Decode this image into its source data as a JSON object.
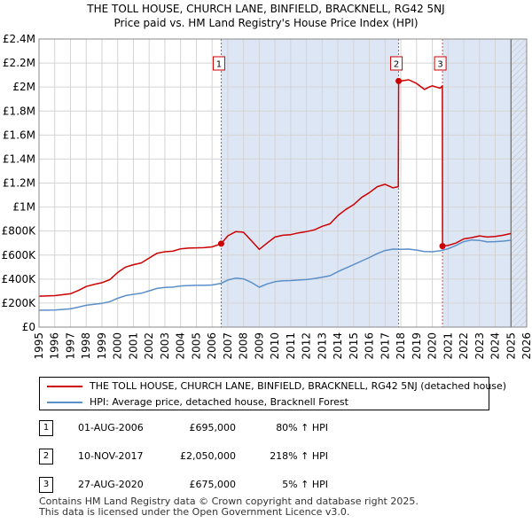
{
  "colors": {
    "property_line": "#cc0000",
    "hpi_line": "#5b8fc9",
    "shade": "#dde6f5",
    "grid": "#d4d4d4",
    "marker_border": "#cc0000"
  },
  "chart_data": {
    "type": "line",
    "title": "THE TOLL HOUSE, CHURCH LANE, BINFIELD, BRACKNELL, RG42 5NJ",
    "subtitle": "Price paid vs. HM Land Registry's House Price Index (HPI)",
    "xlabel": "",
    "ylabel": "",
    "xlim": [
      1995,
      2026
    ],
    "ylim": [
      0,
      2400000
    ],
    "x_ticks": [
      "1995",
      "1996",
      "1997",
      "1998",
      "1999",
      "2000",
      "2001",
      "2002",
      "2003",
      "2004",
      "2005",
      "2006",
      "2007",
      "2008",
      "2009",
      "2010",
      "2011",
      "2012",
      "2013",
      "2014",
      "2015",
      "2016",
      "2017",
      "2018",
      "2019",
      "2020",
      "2021",
      "2022",
      "2023",
      "2024",
      "2025",
      "2026"
    ],
    "y_ticks": [
      {
        "value": 0,
        "label": "£0"
      },
      {
        "value": 200000,
        "label": "£200K"
      },
      {
        "value": 400000,
        "label": "£400K"
      },
      {
        "value": 600000,
        "label": "£600K"
      },
      {
        "value": 800000,
        "label": "£800K"
      },
      {
        "value": 1000000,
        "label": "£1M"
      },
      {
        "value": 1200000,
        "label": "£1.2M"
      },
      {
        "value": 1400000,
        "label": "£1.4M"
      },
      {
        "value": 1600000,
        "label": "£1.6M"
      },
      {
        "value": 1800000,
        "label": "£1.8M"
      },
      {
        "value": 2000000,
        "label": "£2M"
      },
      {
        "value": 2200000,
        "label": "£2.2M"
      },
      {
        "value": 2400000,
        "label": "£2.4M"
      }
    ],
    "grid": true,
    "shaded_ranges": [
      {
        "from": 2006.58,
        "to": 2017.86
      },
      {
        "from": 2020.65,
        "to": 2026
      }
    ],
    "hatched_from": 2025.0,
    "series": [
      {
        "name": "THE TOLL HOUSE, CHURCH LANE, BINFIELD, BRACKNELL, RG42 5NJ (detached house)",
        "color": "#cc0000",
        "x": [
          1995.0,
          1996.0,
          1997.0,
          1997.5,
          1998.0,
          1998.5,
          1999.0,
          1999.5,
          2000.0,
          2000.5,
          2001.0,
          2001.5,
          2002.0,
          2002.5,
          2003.0,
          2003.5,
          2004.0,
          2004.5,
          2005.0,
          2005.5,
          2006.0,
          2006.58,
          2007.0,
          2007.5,
          2008.0,
          2008.5,
          2009.0,
          2009.5,
          2010.0,
          2010.5,
          2011.0,
          2011.5,
          2012.0,
          2012.5,
          2013.0,
          2013.5,
          2014.0,
          2014.5,
          2015.0,
          2015.5,
          2016.0,
          2016.5,
          2017.0,
          2017.5,
          2017.84,
          2017.86,
          2018.0,
          2018.5,
          2019.0,
          2019.5,
          2019.8,
          2020.0,
          2020.5,
          2020.64,
          2020.65,
          2021.0,
          2021.5,
          2022.0,
          2022.5,
          2023.0,
          2023.5,
          2024.0,
          2024.5,
          2025.0
        ],
        "values": [
          258000,
          262000,
          278000,
          305000,
          338000,
          355000,
          370000,
          395000,
          455000,
          500000,
          520000,
          535000,
          575000,
          615000,
          628000,
          632000,
          652000,
          658000,
          660000,
          662000,
          668000,
          695000,
          760000,
          795000,
          790000,
          720000,
          648000,
          700000,
          750000,
          765000,
          770000,
          785000,
          795000,
          810000,
          840000,
          860000,
          930000,
          980000,
          1020000,
          1080000,
          1120000,
          1170000,
          1190000,
          1160000,
          1170000,
          2050000,
          2050000,
          2060000,
          2030000,
          1980000,
          2000000,
          2010000,
          1990000,
          2010000,
          675000,
          680000,
          700000,
          735000,
          745000,
          760000,
          750000,
          755000,
          765000,
          780000
        ]
      },
      {
        "name": "HPI: Average price, detached house, Bracknell Forest",
        "color": "#5b8fc9",
        "x": [
          1995.0,
          1996.0,
          1997.0,
          1997.5,
          1998.0,
          1998.5,
          1999.0,
          1999.5,
          2000.0,
          2000.5,
          2001.0,
          2001.5,
          2002.0,
          2002.5,
          2003.0,
          2003.5,
          2004.0,
          2004.5,
          2005.0,
          2005.5,
          2006.0,
          2006.58,
          2007.0,
          2007.5,
          2008.0,
          2008.5,
          2009.0,
          2009.5,
          2010.0,
          2010.5,
          2011.0,
          2011.5,
          2012.0,
          2012.5,
          2013.0,
          2013.5,
          2014.0,
          2014.5,
          2015.0,
          2015.5,
          2016.0,
          2016.5,
          2017.0,
          2017.5,
          2018.0,
          2018.5,
          2019.0,
          2019.5,
          2020.0,
          2020.5,
          2021.0,
          2021.5,
          2022.0,
          2022.5,
          2023.0,
          2023.5,
          2024.0,
          2024.5,
          2025.0
        ],
        "values": [
          140000,
          142000,
          152000,
          166000,
          182000,
          190000,
          198000,
          212000,
          240000,
          262000,
          273000,
          282000,
          302000,
          322000,
          330000,
          333000,
          343000,
          346000,
          348000,
          348000,
          351000,
          365000,
          392000,
          408000,
          402000,
          372000,
          332000,
          360000,
          378000,
          386000,
          388000,
          392000,
          396000,
          404000,
          416000,
          428000,
          462000,
          492000,
          520000,
          550000,
          580000,
          612000,
          638000,
          650000,
          648000,
          650000,
          642000,
          630000,
          628000,
          636000,
          652000,
          680000,
          712000,
          726000,
          722000,
          710000,
          712000,
          716000,
          724000
        ]
      }
    ],
    "annotations": [
      {
        "label": "1",
        "x": 2006.58,
        "value": 695000
      },
      {
        "label": "2",
        "x": 2017.86,
        "value": 2050000
      },
      {
        "label": "3",
        "x": 2020.65,
        "value": 675000
      }
    ]
  },
  "legend": [
    {
      "label": "THE TOLL HOUSE, CHURCH LANE, BINFIELD, BRACKNELL, RG42 5NJ (detached house)",
      "color": "#cc0000"
    },
    {
      "label": "HPI: Average price, detached house, Bracknell Forest",
      "color": "#5b8fc9"
    }
  ],
  "sales": [
    {
      "num": "1",
      "date": "01-AUG-2006",
      "price": "£695,000",
      "hpi": "80% ↑ HPI"
    },
    {
      "num": "2",
      "date": "10-NOV-2017",
      "price": "£2,050,000",
      "hpi": "218% ↑ HPI"
    },
    {
      "num": "3",
      "date": "27-AUG-2020",
      "price": "£675,000",
      "hpi": "5% ↑ HPI"
    }
  ],
  "footer": {
    "line1": "Contains HM Land Registry data © Crown copyright and database right 2025.",
    "line2": "This data is licensed under the Open Government Licence v3.0."
  }
}
